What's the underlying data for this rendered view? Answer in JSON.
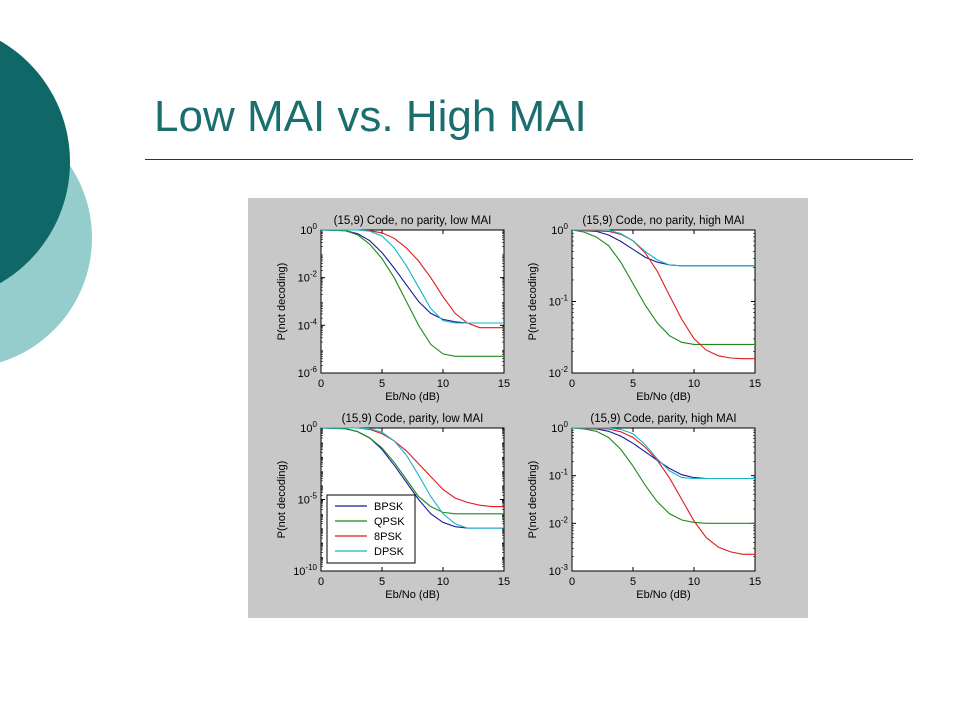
{
  "slide": {
    "title": "Low MAI vs. High MAI",
    "colors": {
      "title": "#1a6e6e",
      "circle_dark": "#0f6767",
      "circle_light": "#95cccc",
      "figure_bg": "#c8c8c8"
    }
  },
  "legend": {
    "placement": "lower-left of bottom-left subplot",
    "entries": [
      {
        "name": "BPSK",
        "color": "#1a1a9a"
      },
      {
        "name": "QPSK",
        "color": "#1a8a1a"
      },
      {
        "name": "8PSK",
        "color": "#e01a1a"
      },
      {
        "name": "DPSK",
        "color": "#19b3c8"
      }
    ]
  },
  "chart_data": [
    {
      "type": "line",
      "title": "(15,9) Code, no parity, low MAI",
      "xlabel": "Eb/No (dB)",
      "ylabel": "P(not decoding)",
      "xlim": [
        0,
        15
      ],
      "ylim_log10": [
        -6,
        0
      ],
      "y_scale": "log",
      "x_ticks": [
        "0",
        "5",
        "10",
        "15"
      ],
      "y_ticks": [
        {
          "base": "10",
          "exp": "0"
        },
        {
          "base": "10",
          "exp": "-2"
        },
        {
          "base": "10",
          "exp": "-4"
        },
        {
          "base": "10",
          "exp": "-6"
        }
      ],
      "series": [
        {
          "x": [
            0,
            2,
            3,
            4,
            5,
            6,
            7,
            8,
            9,
            10,
            11,
            12,
            15
          ],
          "log10y": [
            0,
            -0.03,
            -0.15,
            -0.45,
            -0.95,
            -1.6,
            -2.3,
            -3.0,
            -3.5,
            -3.75,
            -3.85,
            -3.9,
            -3.9
          ]
        },
        {
          "x": [
            0,
            2,
            3,
            4,
            5,
            6,
            7,
            8,
            9,
            10,
            11,
            15
          ],
          "log10y": [
            0,
            -0.03,
            -0.2,
            -0.6,
            -1.2,
            -2.0,
            -3.0,
            -4.0,
            -4.8,
            -5.2,
            -5.3,
            -5.3
          ]
        },
        {
          "x": [
            0,
            3,
            4,
            5,
            6,
            7,
            8,
            9,
            10,
            11,
            12,
            13,
            15
          ],
          "log10y": [
            0,
            0,
            -0.03,
            -0.12,
            -0.35,
            -0.75,
            -1.3,
            -2.0,
            -2.8,
            -3.5,
            -3.9,
            -4.1,
            -4.1
          ]
        },
        {
          "x": [
            0,
            3,
            4,
            5,
            6,
            7,
            8,
            9,
            10,
            11,
            15
          ],
          "log10y": [
            0,
            0,
            -0.05,
            -0.25,
            -0.75,
            -1.5,
            -2.4,
            -3.3,
            -3.8,
            -3.9,
            -3.9
          ]
        }
      ]
    },
    {
      "type": "line",
      "title": "(15,9) Code, no parity, high MAI",
      "xlabel": "Eb/No (dB)",
      "ylabel": "P(not decoding)",
      "xlim": [
        0,
        15
      ],
      "ylim_log10": [
        -2,
        0
      ],
      "y_scale": "log",
      "x_ticks": [
        "0",
        "5",
        "10",
        "15"
      ],
      "y_ticks": [
        {
          "base": "10",
          "exp": "0"
        },
        {
          "base": "10",
          "exp": "-1"
        },
        {
          "base": "10",
          "exp": "-2"
        }
      ],
      "series": [
        {
          "x": [
            0,
            2,
            3,
            4,
            5,
            6,
            7,
            8,
            9,
            10,
            15
          ],
          "log10y": [
            0,
            -0.02,
            -0.07,
            -0.16,
            -0.27,
            -0.38,
            -0.45,
            -0.49,
            -0.5,
            -0.5,
            -0.5
          ]
        },
        {
          "x": [
            0,
            1,
            2,
            3,
            4,
            5,
            6,
            7,
            8,
            9,
            10,
            11,
            15
          ],
          "log10y": [
            0,
            -0.03,
            -0.1,
            -0.22,
            -0.45,
            -0.75,
            -1.05,
            -1.3,
            -1.48,
            -1.57,
            -1.6,
            -1.6,
            -1.6
          ]
        },
        {
          "x": [
            0,
            3,
            4,
            5,
            6,
            7,
            8,
            9,
            10,
            11,
            12,
            13,
            14,
            15
          ],
          "log10y": [
            0,
            -0.02,
            -0.06,
            -0.15,
            -0.32,
            -0.58,
            -0.92,
            -1.25,
            -1.52,
            -1.68,
            -1.76,
            -1.79,
            -1.8,
            -1.8
          ]
        },
        {
          "x": [
            0,
            3,
            4,
            5,
            6,
            7,
            8,
            9,
            15
          ],
          "log10y": [
            0,
            0,
            -0.05,
            -0.15,
            -0.3,
            -0.42,
            -0.49,
            -0.5,
            -0.5
          ]
        }
      ]
    },
    {
      "type": "line",
      "title": "(15,9) Code, parity, low MAI",
      "xlabel": "Eb/No (dB)",
      "ylabel": "P(not decoding)",
      "xlim": [
        0,
        15
      ],
      "ylim_log10": [
        -10,
        0
      ],
      "y_scale": "log",
      "x_ticks": [
        "0",
        "5",
        "10",
        "15"
      ],
      "y_ticks": [
        {
          "base": "10",
          "exp": "0"
        },
        {
          "base": "10",
          "exp": "-5"
        },
        {
          "base": "10",
          "exp": "-10"
        }
      ],
      "series": [
        {
          "x": [
            0,
            2,
            3,
            4,
            5,
            6,
            7,
            8,
            9,
            10,
            11,
            12,
            15
          ],
          "log10y": [
            0,
            -0.05,
            -0.25,
            -0.7,
            -1.5,
            -2.6,
            -3.8,
            -5.0,
            -6.0,
            -6.6,
            -6.9,
            -7.0,
            -7.0
          ]
        },
        {
          "x": [
            0,
            2,
            3,
            4,
            5,
            6,
            7,
            8,
            9,
            10,
            11,
            15
          ],
          "log10y": [
            0,
            -0.05,
            -0.25,
            -0.7,
            -1.4,
            -2.4,
            -3.6,
            -4.8,
            -5.5,
            -5.9,
            -6.0,
            -6.0
          ]
        },
        {
          "x": [
            0,
            3,
            4,
            5,
            6,
            7,
            8,
            9,
            10,
            11,
            12,
            13,
            14,
            15
          ],
          "log10y": [
            0,
            0,
            -0.1,
            -0.4,
            -0.9,
            -1.6,
            -2.5,
            -3.4,
            -4.3,
            -4.9,
            -5.2,
            -5.4,
            -5.5,
            -5.5
          ]
        },
        {
          "x": [
            0,
            3,
            4,
            5,
            6,
            7,
            8,
            9,
            10,
            11,
            12,
            15
          ],
          "log10y": [
            0,
            0,
            -0.05,
            -0.3,
            -0.9,
            -1.9,
            -3.3,
            -4.8,
            -6.0,
            -6.7,
            -7.0,
            -7.0
          ]
        }
      ]
    },
    {
      "type": "line",
      "title": "(15,9) Code, parity, high MAI",
      "xlabel": "Eb/No (dB)",
      "ylabel": "P(not decoding)",
      "xlim": [
        0,
        15
      ],
      "ylim_log10": [
        -3,
        0
      ],
      "y_scale": "log",
      "x_ticks": [
        "0",
        "5",
        "10",
        "15"
      ],
      "y_ticks": [
        {
          "base": "10",
          "exp": "0"
        },
        {
          "base": "10",
          "exp": "-1"
        },
        {
          "base": "10",
          "exp": "-2"
        },
        {
          "base": "10",
          "exp": "-3"
        }
      ],
      "series": [
        {
          "x": [
            0,
            2,
            3,
            4,
            5,
            6,
            7,
            8,
            9,
            10,
            11,
            12,
            15
          ],
          "log10y": [
            0,
            -0.02,
            -0.07,
            -0.17,
            -0.32,
            -0.5,
            -0.68,
            -0.85,
            -0.98,
            -1.04,
            -1.06,
            -1.06,
            -1.06
          ]
        },
        {
          "x": [
            0,
            1,
            2,
            3,
            4,
            5,
            6,
            7,
            8,
            9,
            10,
            11,
            15
          ],
          "log10y": [
            0,
            -0.02,
            -0.07,
            -0.2,
            -0.45,
            -0.8,
            -1.2,
            -1.55,
            -1.8,
            -1.93,
            -1.98,
            -2.0,
            -2.0
          ]
        },
        {
          "x": [
            0,
            3,
            4,
            5,
            6,
            7,
            8,
            9,
            10,
            11,
            12,
            13,
            14,
            15
          ],
          "log10y": [
            0,
            -0.02,
            -0.08,
            -0.2,
            -0.4,
            -0.68,
            -1.05,
            -1.5,
            -1.95,
            -2.3,
            -2.5,
            -2.6,
            -2.65,
            -2.65
          ]
        },
        {
          "x": [
            0,
            3,
            4,
            5,
            6,
            7,
            8,
            9,
            10,
            15
          ],
          "log10y": [
            0,
            0,
            -0.03,
            -0.12,
            -0.35,
            -0.65,
            -0.9,
            -1.04,
            -1.06,
            -1.06
          ]
        }
      ]
    }
  ]
}
